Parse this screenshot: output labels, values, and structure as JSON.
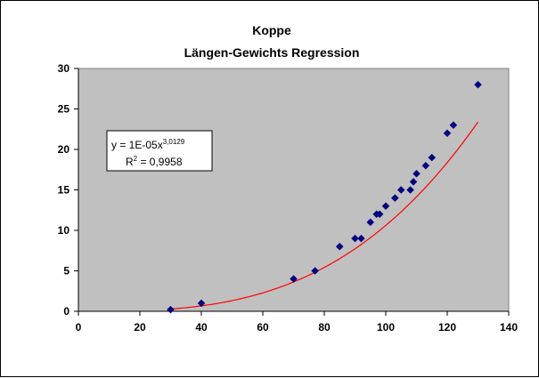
{
  "chart_data": {
    "type": "scatter",
    "title": "Koppe",
    "subtitle": "Längen-Gewichts Regression",
    "xlabel": "",
    "ylabel": "",
    "xlim": [
      0,
      140
    ],
    "ylim": [
      0,
      30
    ],
    "x_ticks": [
      0,
      20,
      40,
      60,
      80,
      100,
      120,
      140
    ],
    "y_ticks": [
      0,
      5,
      10,
      15,
      20,
      25,
      30
    ],
    "grid": false,
    "legend": "none",
    "series": [
      {
        "points": [
          [
            30,
            0.2
          ],
          [
            40,
            1.0
          ],
          [
            70,
            4.0
          ],
          [
            77,
            5.0
          ],
          [
            85,
            8.0
          ],
          [
            90,
            9.0
          ],
          [
            92,
            9.0
          ],
          [
            95,
            11.0
          ],
          [
            97,
            12.0
          ],
          [
            98,
            12.0
          ],
          [
            100,
            13.0
          ],
          [
            103,
            14.0
          ],
          [
            105,
            15.0
          ],
          [
            108,
            15.0
          ],
          [
            109,
            16.0
          ],
          [
            110,
            17.0
          ],
          [
            113,
            18.0
          ],
          [
            115,
            19.0
          ],
          [
            120,
            22.0
          ],
          [
            122,
            23.0
          ],
          [
            130,
            28.0
          ]
        ]
      }
    ],
    "trendline": {
      "type": "power",
      "coefficient": 1e-05,
      "exponent": 3.0129,
      "x_range": [
        30,
        130
      ],
      "equation_prefix": "y = 1E-05x",
      "equation_exponent": "3,0129",
      "r2_prefix": "R",
      "r2_exponent": "2",
      "r2_value": " = 0,9958"
    },
    "colors": {
      "plot_area": "#c0c0c0",
      "marker": "#000080",
      "trendline": "#ff0000",
      "axes": "#000000"
    }
  }
}
